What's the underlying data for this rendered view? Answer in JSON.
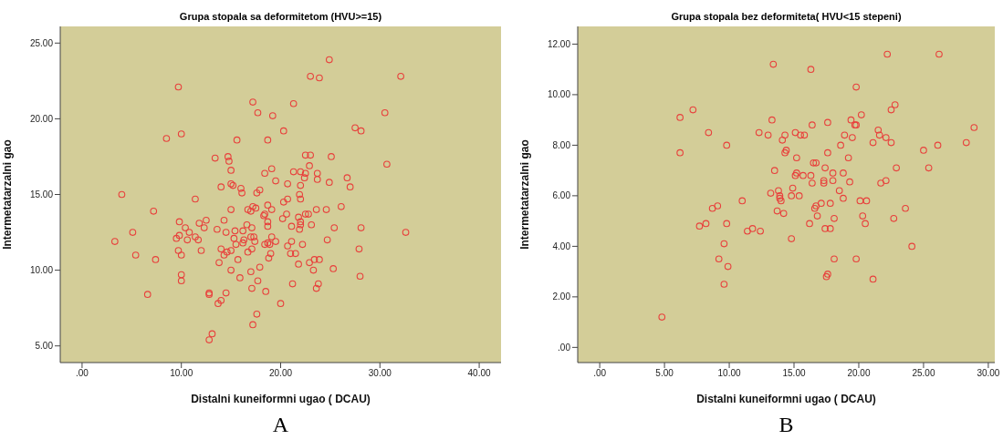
{
  "chart_data": [
    {
      "type": "scatter",
      "title": "Grupa stopala sa deformitetom (HVU>=15)",
      "xlabel": "Distalni kuneiformni ugao ( DCAU)",
      "ylabel": "Intermetatarzalni gao",
      "marker": "circle",
      "annotations": [
        "A"
      ],
      "xlim": [
        -2.2,
        42.2
      ],
      "ylim": [
        3.9,
        26.1
      ],
      "xticks": [
        {
          "value": 0,
          "label": ".00"
        },
        {
          "value": 10,
          "label": "10.00"
        },
        {
          "value": 20,
          "label": "20.00"
        },
        {
          "value": 30,
          "label": "30.00"
        },
        {
          "value": 40,
          "label": "40.00"
        }
      ],
      "yticks": [
        {
          "value": 5,
          "label": "5.00"
        },
        {
          "value": 10,
          "label": "10.00"
        },
        {
          "value": 15,
          "label": "15.00"
        },
        {
          "value": 20,
          "label": "20.00"
        },
        {
          "value": 25,
          "label": "25.00"
        }
      ],
      "series": [
        {
          "color": "#e8403c",
          "x": [
            9.7,
            17.2,
            17.7,
            19.2,
            8.5,
            10.0,
            15.6,
            18.7,
            13.4,
            14.7,
            14.8,
            15.0,
            19.1,
            18.4,
            19.5,
            14.0,
            15.0,
            15.2,
            16.0,
            16.1,
            17.6,
            17.9,
            4.0,
            11.4,
            7.2,
            15.0,
            16.7,
            17.0,
            17.2,
            17.5,
            18.7,
            19.1,
            18.3,
            18.4,
            14.3,
            9.8,
            12.5,
            11.8,
            12.3,
            10.4,
            10.8,
            18.7,
            18.7,
            16.6,
            17.1,
            16.2,
            15.4,
            13.6,
            14.5,
            5.1,
            3.3,
            9.8,
            9.5,
            10.6,
            11.4,
            11.7,
            15.3,
            16.3,
            17.0,
            17.3,
            17.4,
            16.2,
            15.5,
            19.1,
            19.5,
            18.4,
            18.7,
            18.9,
            14.0,
            14.6,
            15.0,
            14.3,
            12.0,
            9.7,
            10.0,
            5.4,
            7.4,
            16.7,
            17.1,
            19.0,
            18.8,
            15.7,
            13.8,
            15.0,
            17.0,
            17.9,
            15.9,
            10.0,
            10.0,
            17.7,
            17.1,
            18.5,
            6.6,
            12.8,
            12.8,
            14.5,
            14.0,
            13.7,
            20.0,
            17.6,
            17.2,
            13.1,
            12.8,
            24.9,
            23.0,
            23.9,
            32.1,
            21.3,
            20.3,
            30.5,
            27.5,
            28.1,
            22.5,
            23.0,
            25.1,
            22.9,
            30.7,
            21.3,
            22.0,
            22.5,
            22.4,
            23.7,
            23.7,
            20.7,
            22.0,
            24.9,
            26.7,
            27.0,
            21.9,
            22.0,
            20.7,
            20.3,
            23.6,
            24.6,
            26.1,
            20.6,
            20.2,
            21.8,
            22.0,
            22.0,
            21.9,
            21.1,
            22.5,
            22.8,
            23.1,
            25.4,
            28.1,
            32.6,
            21.1,
            20.7,
            22.2,
            24.7,
            21.0,
            21.5,
            27.9,
            21.8,
            22.9,
            23.4,
            23.9,
            23.3,
            25.3,
            28.0,
            21.2,
            23.8,
            23.6
          ],
          "values": [
            22.1,
            21.1,
            20.4,
            20.2,
            18.7,
            19.0,
            18.6,
            18.6,
            17.4,
            17.5,
            17.2,
            16.6,
            16.7,
            16.4,
            15.9,
            15.5,
            15.7,
            15.6,
            15.4,
            15.1,
            15.1,
            15.3,
            15.0,
            14.7,
            13.9,
            14.0,
            14.0,
            13.9,
            14.2,
            14.1,
            14.3,
            14.0,
            13.6,
            13.7,
            13.3,
            13.2,
            13.3,
            13.1,
            12.8,
            12.8,
            12.5,
            13.2,
            12.9,
            13.0,
            12.8,
            12.6,
            12.6,
            12.7,
            12.5,
            12.5,
            11.9,
            12.3,
            12.1,
            12.0,
            12.2,
            12.0,
            12.1,
            12.0,
            12.2,
            12.2,
            11.9,
            11.8,
            11.7,
            12.2,
            11.9,
            11.7,
            11.8,
            11.7,
            11.4,
            11.2,
            11.3,
            11.0,
            11.3,
            11.3,
            11.0,
            11.0,
            10.7,
            11.2,
            11.4,
            11.1,
            10.8,
            10.7,
            10.5,
            10.0,
            9.9,
            10.2,
            9.5,
            9.7,
            9.3,
            9.3,
            8.8,
            8.6,
            8.4,
            8.5,
            8.4,
            8.5,
            8.0,
            7.8,
            7.8,
            7.1,
            6.4,
            5.8,
            5.4,
            23.9,
            22.8,
            22.7,
            22.8,
            21.0,
            19.2,
            20.4,
            19.4,
            19.2,
            17.6,
            17.6,
            17.5,
            16.9,
            17.0,
            16.5,
            16.5,
            16.4,
            16.1,
            16.4,
            16.0,
            15.7,
            15.6,
            15.8,
            16.1,
            15.5,
            15.0,
            14.7,
            14.7,
            14.5,
            14.0,
            14.0,
            14.2,
            13.7,
            13.4,
            13.5,
            13.2,
            13.0,
            12.7,
            12.9,
            13.7,
            13.7,
            13.0,
            12.8,
            12.8,
            12.5,
            11.9,
            11.6,
            11.7,
            12.0,
            11.1,
            11.1,
            11.4,
            10.4,
            10.5,
            10.7,
            10.7,
            10.0,
            10.1,
            9.6,
            9.1,
            9.1,
            8.8
          ]
        }
      ]
    },
    {
      "type": "scatter",
      "title": "Grupa stopala bez deformiteta( HVU<15 stepeni)",
      "xlabel": "Distalni kuneiformni ugao ( DCAU)",
      "ylabel": "Intermetatarzalni gao",
      "marker": "circle",
      "annotations": [
        "B"
      ],
      "xlim": [
        -1.7,
        30.5
      ],
      "ylim": [
        -0.6,
        12.7
      ],
      "xticks": [
        {
          "value": 0,
          "label": ".00"
        },
        {
          "value": 5,
          "label": "5.00"
        },
        {
          "value": 10,
          "label": "10.00"
        },
        {
          "value": 15,
          "label": "15.00"
        },
        {
          "value": 20,
          "label": "20.00"
        },
        {
          "value": 25,
          "label": "25.00"
        },
        {
          "value": 30,
          "label": "30.00"
        }
      ],
      "yticks": [
        {
          "value": 0,
          "label": ".00"
        },
        {
          "value": 2,
          "label": "2.00"
        },
        {
          "value": 4,
          "label": "4.00"
        },
        {
          "value": 6,
          "label": "6.00"
        },
        {
          "value": 8,
          "label": "8.00"
        },
        {
          "value": 10,
          "label": "10.00"
        },
        {
          "value": 12,
          "label": "12.00"
        }
      ],
      "series": [
        {
          "color": "#e8403c",
          "x": [
            6.2,
            7.2,
            6.2,
            8.4,
            9.8,
            4.8,
            8.7,
            9.1,
            7.7,
            8.2,
            9.8,
            9.6,
            9.2,
            9.9,
            9.6,
            22.2,
            26.2,
            13.4,
            16.3,
            19.8,
            22.8,
            22.5,
            20.2,
            13.3,
            16.4,
            17.6,
            19.4,
            19.7,
            19.8,
            28.9,
            12.3,
            13.0,
            14.3,
            14.1,
            15.1,
            15.5,
            15.8,
            18.9,
            19.5,
            21.5,
            21.6,
            22.1,
            22.5,
            21.1,
            18.6,
            26.1,
            28.3,
            14.4,
            14.3,
            17.6,
            25.0,
            15.2,
            19.2,
            16.5,
            16.7,
            13.5,
            17.4,
            22.9,
            25.4,
            15.2,
            15.1,
            15.7,
            16.3,
            18.0,
            18.8,
            17.3,
            17.3,
            16.4,
            18.0,
            19.3,
            21.7,
            22.1,
            11.0,
            13.2,
            13.8,
            13.9,
            13.9,
            14.0,
            14.9,
            14.8,
            15.4,
            18.5,
            18.8,
            17.1,
            17.8,
            16.7,
            16.6,
            20.1,
            20.6,
            23.6,
            13.7,
            14.2,
            16.8,
            18.1,
            20.3,
            22.7,
            16.2,
            20.5,
            17.4,
            17.8,
            11.4,
            11.8,
            12.4,
            14.8,
            24.1,
            18.1,
            19.8,
            17.6,
            17.5,
            21.1
          ],
          "values": [
            9.1,
            9.4,
            7.7,
            8.5,
            8.0,
            1.2,
            5.5,
            5.6,
            4.8,
            4.9,
            4.9,
            4.1,
            3.5,
            3.2,
            2.5,
            11.6,
            11.6,
            11.2,
            11.0,
            10.3,
            9.6,
            9.4,
            9.2,
            9.0,
            8.8,
            8.9,
            9.0,
            8.8,
            8.8,
            8.7,
            8.5,
            8.4,
            8.4,
            8.2,
            8.5,
            8.4,
            8.4,
            8.4,
            8.3,
            8.6,
            8.4,
            8.3,
            8.1,
            8.1,
            8.0,
            8.0,
            8.1,
            7.8,
            7.7,
            7.7,
            7.8,
            7.5,
            7.5,
            7.3,
            7.3,
            7.0,
            7.1,
            7.1,
            7.1,
            6.9,
            6.8,
            6.8,
            6.8,
            6.9,
            6.9,
            6.6,
            6.5,
            6.5,
            6.6,
            6.55,
            6.5,
            6.6,
            5.8,
            6.1,
            6.2,
            6.0,
            5.9,
            5.8,
            6.3,
            6.0,
            6.0,
            6.2,
            5.9,
            5.7,
            5.7,
            5.6,
            5.5,
            5.8,
            5.8,
            5.5,
            5.4,
            5.3,
            5.2,
            5.1,
            5.2,
            5.1,
            4.9,
            4.9,
            4.7,
            4.7,
            4.6,
            4.7,
            4.6,
            4.3,
            4.0,
            3.5,
            3.5,
            2.9,
            2.8,
            2.7
          ]
        }
      ]
    }
  ]
}
